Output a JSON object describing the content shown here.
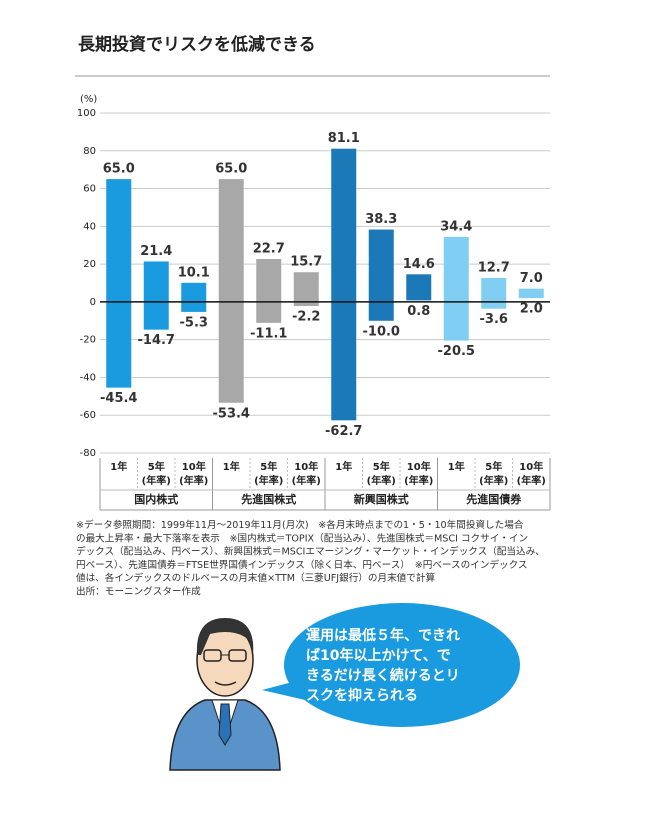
{
  "chart_data": {
    "type": "range-bar",
    "title": "長期投資でリスクを低減できる",
    "ylabel": "(%)",
    "ylim": [
      -80,
      100
    ],
    "yticks": [
      -80,
      -60,
      -40,
      -20,
      0,
      20,
      40,
      60,
      80,
      100
    ],
    "grid": true,
    "period_labels": [
      [
        "1年"
      ],
      [
        "5年",
        "(年率)"
      ],
      [
        "10年",
        "(年率)"
      ]
    ],
    "groups": [
      {
        "name": "国内株式",
        "color": "#1a9be0",
        "max": [
          65.0,
          21.4,
          10.1
        ],
        "max_labels": [
          "65.0",
          "21.4",
          "10.1"
        ],
        "min": [
          -45.4,
          -14.7,
          -5.3
        ],
        "min_labels": [
          "-45.4",
          "-14.7",
          "-5.3"
        ]
      },
      {
        "name": "先進国株式",
        "color": "#a8a8a8",
        "max": [
          65.0,
          22.7,
          15.7
        ],
        "max_labels": [
          "65.0",
          "22.7",
          "15.7"
        ],
        "min": [
          -53.4,
          -11.1,
          -2.2
        ],
        "min_labels": [
          "-53.4",
          "-11.1",
          "-2.2"
        ]
      },
      {
        "name": "新興国株式",
        "color": "#1b79b8",
        "max": [
          81.1,
          38.3,
          14.6
        ],
        "max_labels": [
          "81.1",
          "38.3",
          "14.6"
        ],
        "min": [
          -62.7,
          -10.0,
          0.8
        ],
        "min_labels": [
          "-62.7",
          "-10.0",
          "0.8"
        ]
      },
      {
        "name": "先進国債券",
        "color": "#80cff3",
        "max": [
          34.4,
          12.7,
          7.0
        ],
        "max_labels": [
          "34.4",
          "12.7",
          "7.0"
        ],
        "min": [
          -20.5,
          -3.6,
          2.0
        ],
        "min_labels": [
          "-20.5",
          "-3.6",
          "2.0"
        ]
      }
    ]
  },
  "notes": [
    "※データ参照期間：1999年11月～2019年11月(月次)　※各月末時点までの1・5・10年間投資した場合",
    "の最大上昇率・最大下落率を表示　※国内株式＝TOPIX（配当込み）、先進国株式＝MSCI コクサイ・イン",
    "デックス（配当込み、円ベース）、新興国株式＝MSCIエマージング・マーケット・インデックス（配当込み、",
    "円ベース）、先進国債券＝FTSE世界国債インデックス（除く日本、円ベース）　※円ベースのインデックス",
    "値は、各インデックスのドルベースの月末値×TTM（三菱UFJ銀行）の月末値で計算",
    "出所：モーニングスター作成"
  ],
  "speech_bubble": [
    "運用は最低５年、できれ",
    "ば10年以上かけて、で",
    "きるだけ長く続けるとリ",
    "スクを抑えられる"
  ]
}
